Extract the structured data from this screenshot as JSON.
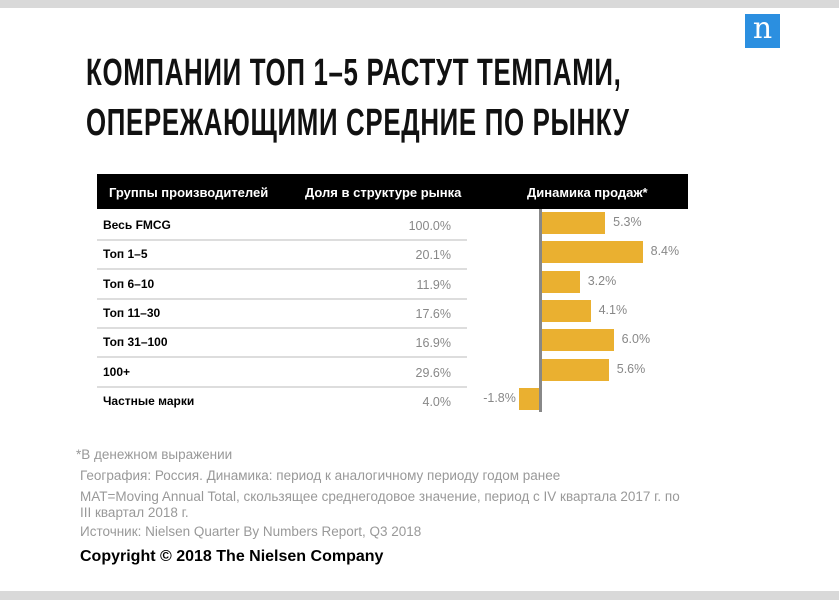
{
  "logo": "n",
  "title": [
    "КОМПАНИИ ТОП 1–5 РАСТУТ ТЕМПАМИ,",
    "ОПЕРЕЖАЮЩИМИ СРЕДНИЕ ПО РЫНКУ"
  ],
  "headers": [
    "Группы производителей",
    "Доля в структуре рынка",
    "Динамика продаж*"
  ],
  "chart_data": {
    "type": "table",
    "categories": [
      "Весь FMCG",
      "Топ 1–5",
      "Топ 6–10",
      "Топ 11–30",
      "Топ 31–100",
      "100+",
      "Частные марки"
    ],
    "share": [
      "100.0%",
      "20.1%",
      "11.9%",
      "17.6%",
      "16.9%",
      "29.6%",
      "4.0%"
    ],
    "growth": [
      5.3,
      8.4,
      3.2,
      4.1,
      6.0,
      5.6,
      -1.8
    ],
    "growth_labels": [
      "5.3%",
      "8.4%",
      "3.2%",
      "4.1%",
      "6.0%",
      "5.6%",
      "-1.8%"
    ],
    "bar_color": "#eab030"
  },
  "notes": [
    "*В денежном выражении",
    "География: Россия. Динамика: период к аналогичному периоду годом ранее",
    "MAT=Moving Annual Total, скользящее среднегодовое значение, период с IV квартала 2017 г. по",
    "III квартал 2018 г.",
    "Источник: Nielsen Quarter By Numbers Report, Q3 2018"
  ],
  "copyright": "Copyright © 2018 The Nielsen Company"
}
